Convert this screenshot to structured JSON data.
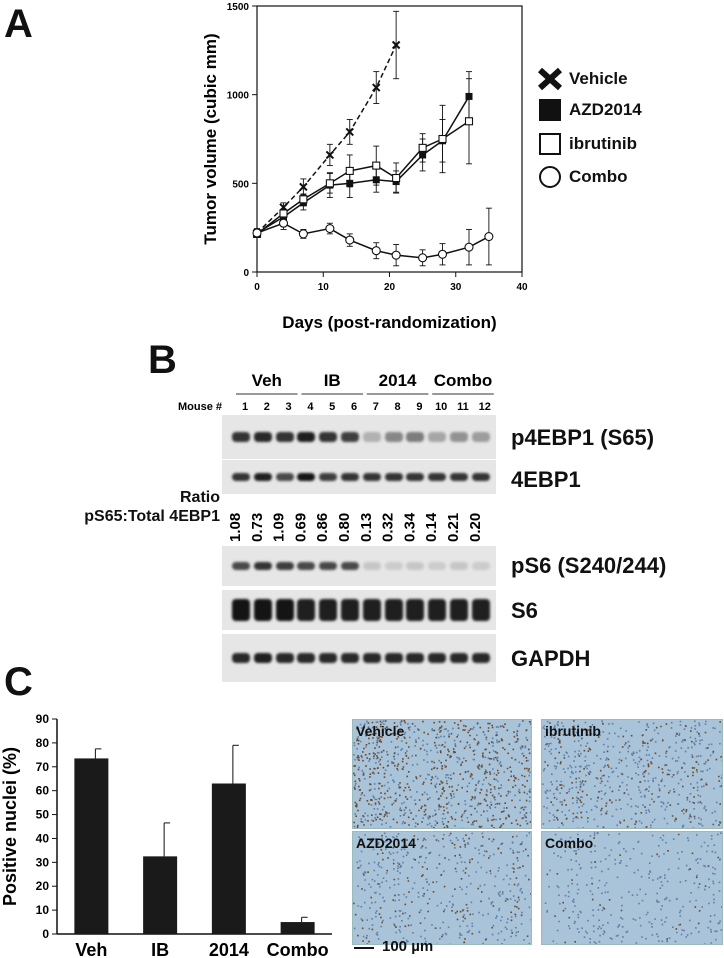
{
  "panels": {
    "a": "A",
    "b": "B",
    "c": "C"
  },
  "chart_data": [
    {
      "type": "line",
      "xlabel": "Days (post-randomization)",
      "ylabel": "Tumor volume (cubic mm)",
      "xlim": [
        0,
        40
      ],
      "ylim": [
        0,
        1500
      ],
      "xticks": [
        "0",
        "10",
        "20",
        "30",
        "40"
      ],
      "yticks": [
        "0",
        "500",
        "1000",
        "1500"
      ],
      "series": [
        {
          "name": "Vehicle",
          "marker": "x-mark",
          "dashed": true,
          "x": [
            0,
            4,
            7,
            11,
            14,
            18,
            21
          ],
          "y": [
            220,
            365,
            480,
            660,
            790,
            1040,
            1280
          ],
          "err": [
            25,
            25,
            45,
            60,
            70,
            90,
            190
          ]
        },
        {
          "name": "AZD2014",
          "marker": "filled-square",
          "dashed": false,
          "x": [
            0,
            4,
            7,
            11,
            14,
            18,
            21,
            25,
            28,
            32
          ],
          "y": [
            220,
            310,
            390,
            490,
            500,
            520,
            510,
            660,
            740,
            990
          ],
          "err": [
            20,
            25,
            40,
            70,
            80,
            70,
            60,
            90,
            120,
            140
          ]
        },
        {
          "name": "ibrutinib",
          "marker": "open-square",
          "dashed": false,
          "x": [
            0,
            4,
            7,
            11,
            14,
            18,
            21,
            25,
            28,
            32
          ],
          "y": [
            215,
            330,
            410,
            500,
            570,
            600,
            530,
            700,
            750,
            850
          ],
          "err": [
            20,
            25,
            30,
            55,
            90,
            110,
            85,
            80,
            190,
            240
          ]
        },
        {
          "name": "Combo",
          "marker": "open-circle",
          "dashed": false,
          "x": [
            0,
            4,
            7,
            11,
            14,
            18,
            21,
            25,
            28,
            32,
            35
          ],
          "y": [
            220,
            275,
            215,
            245,
            180,
            120,
            95,
            80,
            100,
            140,
            200
          ],
          "err": [
            20,
            35,
            25,
            30,
            35,
            45,
            60,
            45,
            60,
            100,
            160
          ]
        }
      ]
    },
    {
      "type": "bar",
      "ylabel": "Positive nuclei (%)",
      "ylim": [
        0,
        90
      ],
      "yticks": [
        "0",
        "10",
        "20",
        "30",
        "40",
        "50",
        "60",
        "70",
        "80",
        "90"
      ],
      "categories": [
        "Veh",
        "IB",
        "2014",
        "Combo"
      ],
      "values": [
        73.5,
        32.5,
        63,
        5
      ],
      "err": [
        4,
        14,
        16,
        2
      ],
      "bar_color": "#1a1a1a"
    }
  ],
  "blot": {
    "groups": [
      "Veh",
      "IB",
      "2014",
      "Combo"
    ],
    "mouse_label": "Mouse #",
    "mice": [
      "1",
      "2",
      "3",
      "4",
      "5",
      "6",
      "7",
      "8",
      "9",
      "10",
      "11",
      "12"
    ],
    "bands": [
      "p4EBP1 (S65)",
      "4EBP1",
      "pS6 (S240/244)",
      "S6",
      "GAPDH"
    ],
    "ratio_label_1": "Ratio",
    "ratio_label_2": "pS65:Total 4EBP1",
    "ratios": [
      "1.08",
      "0.73",
      "1.09",
      "0.69",
      "0.86",
      "0.80",
      "0.13",
      "0.32",
      "0.34",
      "0.14",
      "0.21",
      "0.20"
    ],
    "intensity": {
      "p4EBP1": [
        0.85,
        0.9,
        0.85,
        0.95,
        0.85,
        0.8,
        0.25,
        0.45,
        0.5,
        0.3,
        0.4,
        0.35
      ],
      "4EBP1": [
        0.85,
        0.95,
        0.75,
        1.0,
        0.8,
        0.85,
        0.85,
        0.85,
        0.85,
        0.85,
        0.85,
        0.85
      ],
      "pS6": [
        0.75,
        0.85,
        0.8,
        0.75,
        0.75,
        0.75,
        0.15,
        0.12,
        0.15,
        0.12,
        0.15,
        0.12
      ],
      "S6": [
        1,
        1,
        1,
        0.95,
        0.95,
        0.95,
        0.95,
        0.95,
        0.95,
        0.95,
        0.95,
        0.95
      ],
      "GAPDH": [
        0.9,
        0.95,
        0.9,
        0.9,
        0.9,
        0.9,
        0.9,
        0.9,
        0.9,
        0.9,
        0.9,
        0.9
      ]
    }
  },
  "histology": {
    "panels": [
      "Vehicle",
      "ibrutinib",
      "AZD2014",
      "Combo"
    ],
    "scale_bar": "100 µm"
  }
}
